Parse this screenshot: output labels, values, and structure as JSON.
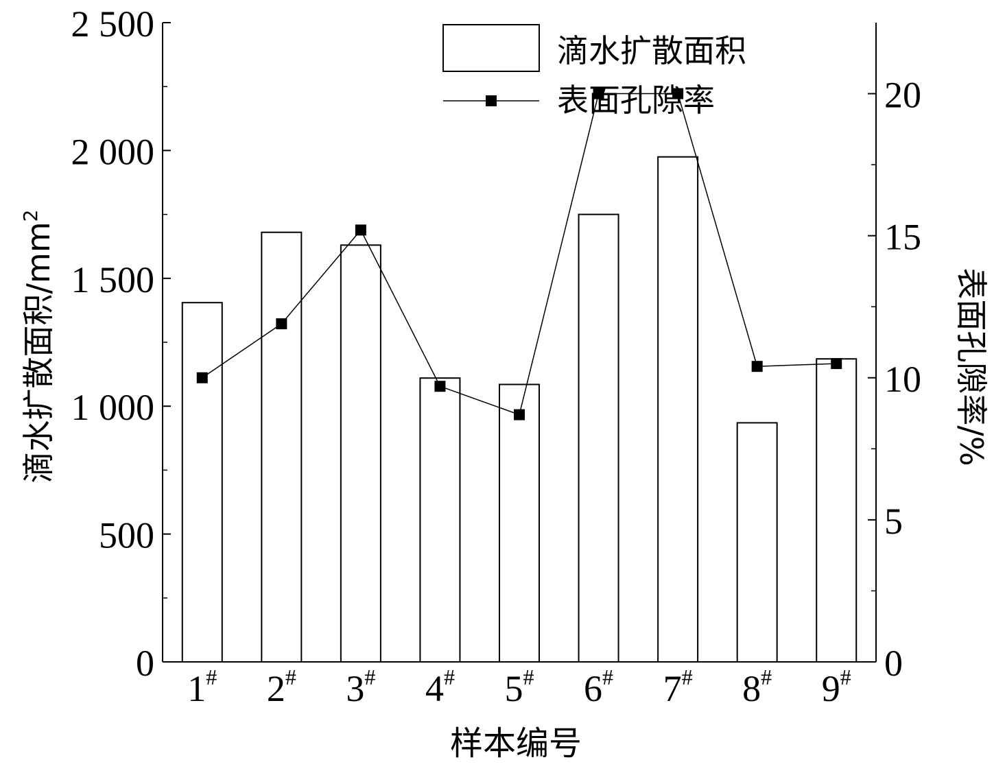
{
  "chart_data": {
    "type": "bar+line",
    "categories": [
      "1",
      "2",
      "3",
      "4",
      "5",
      "6",
      "7",
      "8",
      "9"
    ],
    "category_suffix": "#",
    "xlabel": "样本编号",
    "ylabel_left": {
      "text": "滴水扩散面积/mm",
      "superscript": "2"
    },
    "ylabel_right": "表面孔隙率/%",
    "left_axis": {
      "min": 0,
      "max": 2500,
      "ticks": [
        0,
        500,
        1000,
        1500,
        2000,
        2500
      ],
      "tick_labels": [
        "0",
        "500",
        "1 000",
        "1 500",
        "2 000",
        "2 500"
      ]
    },
    "right_axis": {
      "min": 0,
      "max": 22.5,
      "ticks": [
        0,
        5,
        10,
        15,
        20
      ],
      "tick_labels": [
        "0",
        "5",
        "10",
        "15",
        "20"
      ]
    },
    "series": [
      {
        "name": "滴水扩散面积",
        "type": "bar",
        "axis": "left",
        "values": [
          1405,
          1680,
          1630,
          1110,
          1085,
          1750,
          1975,
          935,
          1185
        ]
      },
      {
        "name": "表面孔隙率",
        "type": "line",
        "axis": "right",
        "marker": "square",
        "values": [
          10.0,
          11.9,
          15.2,
          9.7,
          8.7,
          20.0,
          20.0,
          10.4,
          10.5
        ]
      }
    ],
    "legend": {
      "position": "top-right"
    },
    "grid": false
  },
  "colors": {
    "ink": "#000000",
    "bar_fill": "#ffffff"
  }
}
